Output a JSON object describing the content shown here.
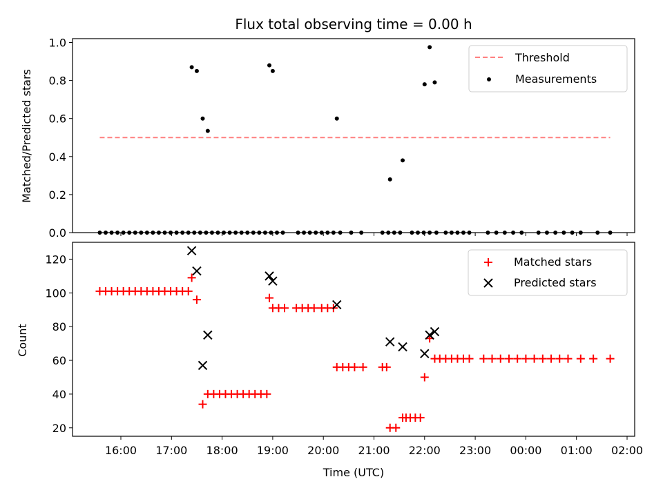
{
  "chart_data": [
    {
      "type": "scatter",
      "title": "Flux total observing time = 0.00 h",
      "ylabel": "Matched/Predicted stars",
      "xlabel": "",
      "ylim": [
        0,
        1.02
      ],
      "yticks": [
        0.0,
        0.2,
        0.4,
        0.6,
        0.8,
        1.0
      ],
      "ytick_labels": [
        "0.0",
        "0.2",
        "0.4",
        "0.6",
        "0.8",
        "1.0"
      ],
      "legend": {
        "placement": "upper right",
        "entries": [
          {
            "label": "Threshold",
            "marker": "dashed-line",
            "color": "#ff8080"
          },
          {
            "label": "Measurements",
            "marker": "dot",
            "color": "#000000"
          }
        ]
      },
      "threshold": {
        "name": "Threshold",
        "y": 0.5,
        "x_start": "15:35",
        "x_end": "01:40",
        "color": "#ff8080"
      },
      "series": [
        {
          "name": "Measurements",
          "color": "#000000",
          "x": [
            "15:35",
            "15:42",
            "15:49",
            "15:56",
            "16:03",
            "16:10",
            "16:17",
            "16:24",
            "16:31",
            "16:38",
            "16:45",
            "16:52",
            "16:59",
            "17:06",
            "17:13",
            "17:20",
            "17:27",
            "17:34",
            "17:41",
            "17:48",
            "17:55",
            "18:02",
            "18:09",
            "18:16",
            "18:23",
            "18:30",
            "18:37",
            "18:44",
            "18:51",
            "18:58",
            "19:05",
            "19:12",
            "19:30",
            "19:37",
            "19:44",
            "19:51",
            "19:58",
            "20:05",
            "20:12",
            "20:20",
            "20:33",
            "20:45",
            "21:10",
            "21:17",
            "21:24",
            "21:31",
            "21:45",
            "21:52",
            "21:59",
            "22:06",
            "22:14",
            "22:25",
            "22:32",
            "22:39",
            "22:46",
            "22:53",
            "23:15",
            "23:25",
            "23:35",
            "23:45",
            "23:55",
            "00:15",
            "00:25",
            "00:35",
            "00:45",
            "00:55",
            "01:05",
            "01:25",
            "01:40",
            "17:24",
            "17:30",
            "17:37",
            "17:43",
            "18:56",
            "19:00",
            "20:16",
            "21:19",
            "21:34",
            "22:00",
            "22:06",
            "22:12"
          ],
          "y": [
            0,
            0,
            0,
            0,
            0,
            0,
            0,
            0,
            0,
            0,
            0,
            0,
            0,
            0,
            0,
            0,
            0,
            0,
            0,
            0,
            0,
            0,
            0,
            0,
            0,
            0,
            0,
            0,
            0,
            0,
            0,
            0,
            0,
            0,
            0,
            0,
            0,
            0,
            0,
            0,
            0,
            0,
            0,
            0,
            0,
            0,
            0,
            0,
            0,
            0,
            0,
            0,
            0,
            0,
            0,
            0,
            0,
            0,
            0,
            0,
            0,
            0,
            0,
            0,
            0,
            0,
            0,
            0,
            0,
            0.87,
            0.85,
            0.6,
            0.535,
            0.88,
            0.85,
            0.6,
            0.28,
            0.38,
            0.78,
            0.975,
            0.79
          ]
        }
      ]
    },
    {
      "type": "scatter",
      "title": "",
      "ylabel": "Count",
      "xlabel": "Time (UTC)",
      "ylim": [
        15,
        130
      ],
      "yticks": [
        20,
        40,
        60,
        80,
        100,
        120
      ],
      "ytick_labels": [
        "20",
        "40",
        "60",
        "80",
        "100",
        "120"
      ],
      "xticks": [
        "16:00",
        "17:00",
        "18:00",
        "19:00",
        "20:00",
        "21:00",
        "22:00",
        "23:00",
        "00:00",
        "01:00",
        "02:00"
      ],
      "legend": {
        "placement": "upper right",
        "entries": [
          {
            "label": "Matched stars",
            "marker": "plus",
            "color": "#ff0000"
          },
          {
            "label": "Predicted stars",
            "marker": "x",
            "color": "#000000"
          }
        ]
      },
      "series": [
        {
          "name": "Matched stars",
          "color": "#ff0000",
          "marker": "plus",
          "x": [
            "15:35",
            "15:42",
            "15:49",
            "15:56",
            "16:03",
            "16:10",
            "16:17",
            "16:24",
            "16:31",
            "16:38",
            "16:45",
            "16:52",
            "16:59",
            "17:06",
            "17:13",
            "17:20",
            "17:24",
            "17:30",
            "17:37",
            "17:43",
            "17:50",
            "17:57",
            "18:04",
            "18:11",
            "18:18",
            "18:25",
            "18:32",
            "18:39",
            "18:46",
            "18:53",
            "18:56",
            "19:00",
            "19:07",
            "19:14",
            "19:28",
            "19:35",
            "19:42",
            "19:49",
            "19:58",
            "20:05",
            "20:12",
            "20:16",
            "20:23",
            "20:30",
            "20:37",
            "20:47",
            "21:10",
            "21:15",
            "21:19",
            "21:26",
            "21:34",
            "21:38",
            "21:43",
            "21:49",
            "21:55",
            "22:00",
            "22:06",
            "22:12",
            "22:18",
            "22:25",
            "22:32",
            "22:39",
            "22:46",
            "22:53",
            "23:10",
            "23:20",
            "23:30",
            "23:40",
            "23:50",
            "00:00",
            "00:10",
            "00:20",
            "00:30",
            "00:40",
            "00:50",
            "01:05",
            "01:20",
            "01:40"
          ],
          "y": [
            101,
            101,
            101,
            101,
            101,
            101,
            101,
            101,
            101,
            101,
            101,
            101,
            101,
            101,
            101,
            101,
            109,
            96,
            34,
            40,
            40,
            40,
            40,
            40,
            40,
            40,
            40,
            40,
            40,
            40,
            97,
            91,
            91,
            91,
            91,
            91,
            91,
            91,
            91,
            91,
            91,
            56,
            56,
            56,
            56,
            56,
            56,
            56,
            20,
            20,
            26,
            26,
            26,
            26,
            26,
            50,
            73,
            61,
            61,
            61,
            61,
            61,
            61,
            61,
            61,
            61,
            61,
            61,
            61,
            61,
            61,
            61,
            61,
            61,
            61,
            61,
            61,
            61
          ]
        },
        {
          "name": "Predicted stars",
          "color": "#000000",
          "marker": "x",
          "x": [
            "17:24",
            "17:30",
            "17:37",
            "17:43",
            "18:56",
            "19:00",
            "20:16",
            "21:19",
            "21:34",
            "22:00",
            "22:06",
            "22:12"
          ],
          "y": [
            125,
            113,
            57,
            75,
            110,
            107,
            93,
            71,
            68,
            64,
            75,
            77
          ]
        }
      ]
    }
  ]
}
